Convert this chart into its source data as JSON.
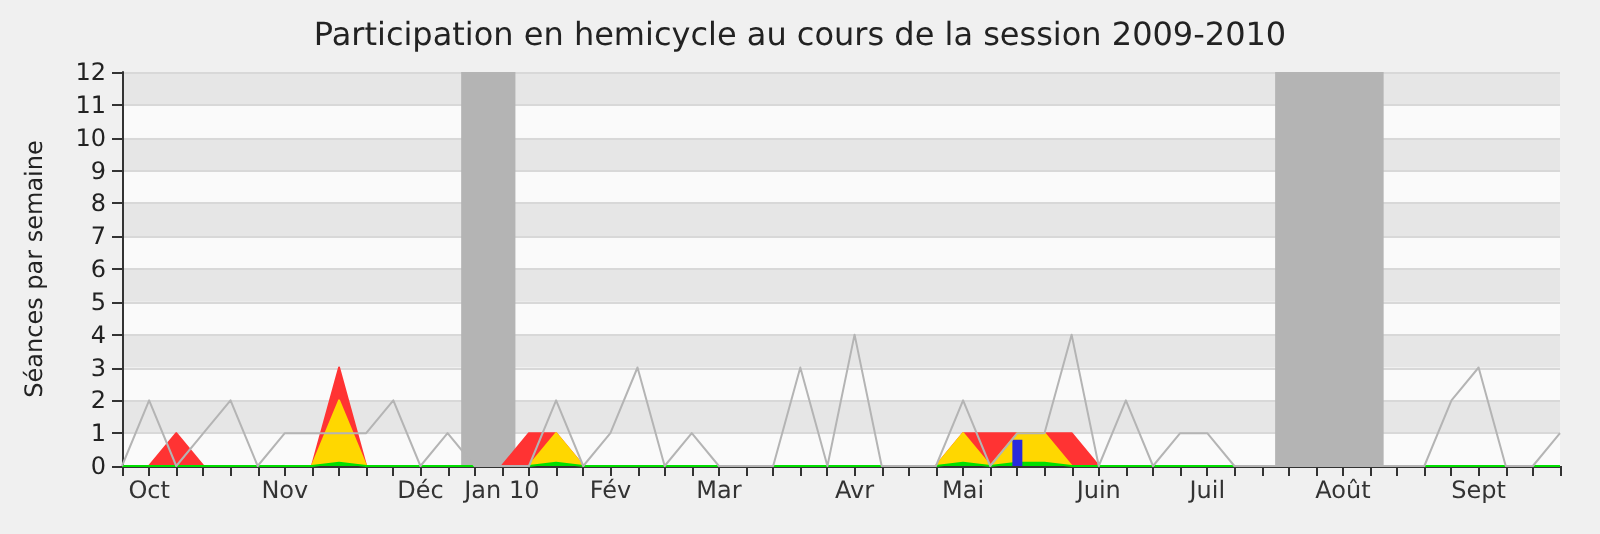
{
  "chart_data": {
    "type": "area",
    "title": "Participation en hemicycle au cours de la session 2009-2010",
    "ylabel": "Séances par semaine",
    "categories": [
      null,
      "Oct",
      null,
      null,
      null,
      null,
      "Nov",
      null,
      null,
      null,
      null,
      "Déc",
      null,
      null,
      "Jan 10",
      null,
      null,
      null,
      "Fév",
      null,
      null,
      null,
      "Mar",
      null,
      null,
      null,
      null,
      "Avr",
      null,
      null,
      null,
      "Mai",
      null,
      null,
      null,
      null,
      "Juin",
      null,
      null,
      null,
      "Juil",
      null,
      null,
      null,
      null,
      "Août",
      null,
      null,
      null,
      null,
      "Sept",
      null,
      null,
      null
    ],
    "ylim": [
      0,
      12
    ],
    "yticks": [
      0,
      1,
      2,
      3,
      4,
      5,
      6,
      7,
      8,
      9,
      10,
      11,
      12
    ],
    "grid": "y",
    "legend": false,
    "series": [
      {
        "type": "line",
        "color": "#b4b4b4",
        "values": [
          0,
          2,
          0,
          1,
          2,
          0,
          1,
          1,
          1,
          1,
          2,
          0,
          1,
          0,
          0,
          0,
          2,
          0,
          1,
          3,
          0,
          1,
          0,
          0,
          0,
          3,
          0,
          4,
          0,
          0,
          0,
          2,
          0,
          1,
          1,
          4,
          0,
          2,
          0,
          1,
          1,
          0,
          0,
          0,
          0,
          0,
          0,
          0,
          0,
          2,
          3,
          0,
          0,
          1
        ]
      },
      {
        "color": "#ff3333",
        "values": [
          0,
          0,
          1,
          0,
          0,
          0,
          0,
          0,
          3,
          0,
          0,
          0,
          0,
          0,
          0,
          1,
          1,
          0,
          0,
          0,
          0,
          0,
          0,
          0,
          0,
          0,
          0,
          0,
          0,
          0,
          0,
          1,
          1,
          1,
          1,
          1,
          0,
          0,
          0,
          0,
          0,
          0,
          0,
          0,
          0,
          0,
          0,
          0,
          0,
          0,
          0,
          0,
          0,
          0
        ]
      },
      {
        "color": "#ffd700",
        "values": [
          0,
          0,
          0,
          0,
          0,
          0,
          0,
          0,
          2,
          0,
          0,
          0,
          0,
          0,
          0,
          0,
          1,
          0,
          0,
          0,
          0,
          0,
          0,
          0,
          0,
          0,
          0,
          0,
          0,
          0,
          0,
          1,
          0,
          1,
          1,
          0,
          0,
          0,
          0,
          0,
          0,
          0,
          0,
          0,
          0,
          0,
          0,
          0,
          0,
          0,
          0,
          0,
          0,
          0
        ]
      },
      {
        "color": "#00e000",
        "values": [
          0,
          0,
          0,
          0,
          0,
          0,
          0,
          0,
          0.1,
          0,
          0,
          0,
          0,
          0,
          0,
          0,
          0.1,
          0,
          0,
          0,
          0,
          0,
          0,
          0,
          0,
          0,
          0,
          0,
          0,
          0,
          0,
          0.1,
          0,
          0.1,
          0.1,
          0,
          0,
          0,
          0,
          0,
          0,
          0,
          0,
          0,
          0,
          0,
          0,
          0,
          0,
          0,
          0,
          0,
          0,
          0
        ]
      },
      {
        "type": "bar",
        "color": "#2a2adc",
        "values": [
          null,
          null,
          null,
          null,
          null,
          null,
          null,
          null,
          null,
          null,
          null,
          null,
          null,
          null,
          null,
          null,
          null,
          null,
          null,
          null,
          null,
          null,
          null,
          null,
          null,
          null,
          null,
          null,
          null,
          null,
          null,
          null,
          null,
          0.8,
          null,
          null,
          null,
          null,
          null,
          null,
          null,
          null,
          null,
          null,
          null,
          null,
          null,
          null,
          null,
          null,
          null,
          null,
          null,
          null
        ]
      }
    ]
  }
}
